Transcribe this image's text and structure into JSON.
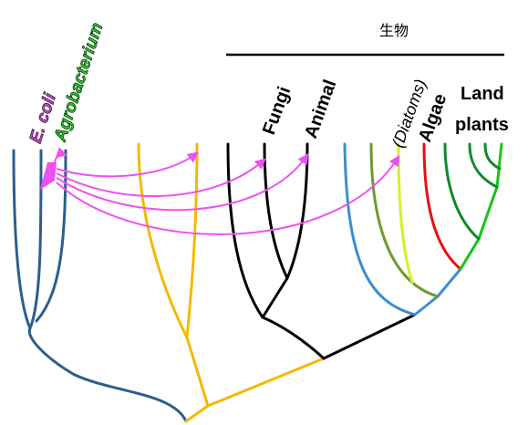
{
  "header": {
    "title": "生物"
  },
  "labels": {
    "ecoli": "E. coli",
    "agrobacterium": "Agrobacterium",
    "fungi": "Fungi",
    "animal": "Animal",
    "diatoms": "(Diatoms)",
    "algae": "Algae",
    "land": "Land",
    "plants": "plants"
  },
  "colors": {
    "bacteria_lineage": "#2a5f8f",
    "trunk": "#f5b800",
    "opisthokonts": "#000000",
    "plants_lineage": "#3a8fcf",
    "diatoms": "#6f9a2e",
    "diatoms_tip": "#d8ee2a",
    "algae": "#e81010",
    "land_plants_dark": "#0e8a2a",
    "land_plants_light": "#18c418",
    "gene_transfer_arrows": "#f050f0",
    "ecoli_label": "#d040d0",
    "agrobacterium_label": "#22cc22"
  }
}
